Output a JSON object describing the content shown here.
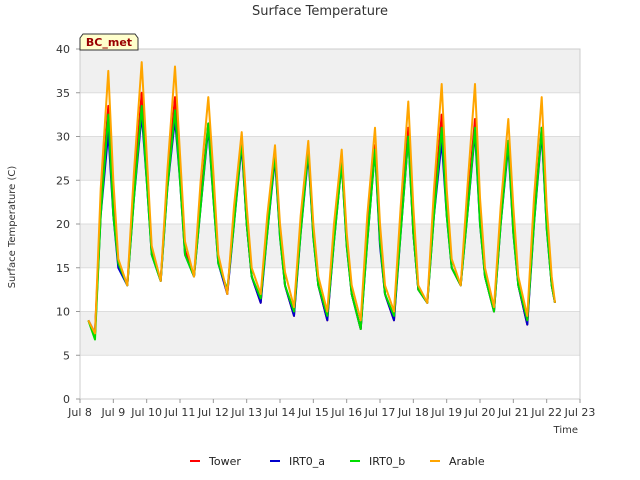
{
  "chart_data": {
    "type": "line",
    "title": "Surface Temperature",
    "xlabel": "Time",
    "ylabel": "Surface Temperature (C)",
    "badge": "BC_met",
    "xlim": [
      8.0,
      23.0
    ],
    "ylim": [
      0,
      40
    ],
    "x_tick_labels": [
      "Jul 8",
      "Jul 9",
      "Jul 10",
      "Jul 11",
      "Jul 12",
      "Jul 13",
      "Jul 14",
      "Jul 15",
      "Jul 16",
      "Jul 17",
      "Jul 18",
      "Jul 19",
      "Jul 20",
      "Jul 21",
      "Jul 22",
      "Jul 23"
    ],
    "y_tick_labels": [
      "0",
      "5",
      "10",
      "15",
      "20",
      "25",
      "30",
      "35",
      "40"
    ],
    "grid": true,
    "legend_position": "bottom",
    "series": [
      {
        "name": "Tower",
        "color": "#ff0000",
        "x": [
          8.25,
          8.45,
          8.62,
          8.85,
          9.0,
          9.15,
          9.42,
          9.62,
          9.85,
          10.0,
          10.15,
          10.42,
          10.62,
          10.85,
          11.0,
          11.15,
          11.42,
          11.62,
          11.85,
          12.0,
          12.15,
          12.42,
          12.62,
          12.85,
          13.0,
          13.15,
          13.42,
          13.62,
          13.85,
          14.0,
          14.15,
          14.42,
          14.62,
          14.85,
          15.0,
          15.15,
          15.42,
          15.62,
          15.85,
          16.0,
          16.15,
          16.42,
          16.62,
          16.85,
          17.0,
          17.15,
          17.42,
          17.62,
          17.85,
          18.0,
          18.15,
          18.42,
          18.62,
          18.85,
          19.0,
          19.15,
          19.42,
          19.62,
          19.85,
          20.0,
          20.15,
          20.42,
          20.62,
          20.85,
          21.0,
          21.15,
          21.42,
          21.62,
          21.85,
          22.0,
          22.15,
          22.25
        ],
        "y": [
          9.0,
          7.5,
          22.0,
          33.5,
          22.0,
          15.5,
          13.0,
          24.0,
          35.0,
          26.0,
          17.0,
          13.5,
          25.0,
          34.5,
          26.0,
          17.0,
          14.0,
          23.0,
          31.5,
          24.0,
          16.0,
          12.0,
          21.0,
          29.5,
          20.0,
          14.0,
          11.0,
          20.0,
          28.0,
          19.0,
          13.0,
          9.5,
          20.0,
          28.5,
          19.0,
          13.0,
          9.0,
          18.5,
          27.5,
          18.0,
          12.0,
          8.0,
          19.0,
          29.0,
          18.0,
          12.0,
          9.0,
          20.0,
          31.0,
          19.0,
          12.5,
          11.0,
          22.0,
          32.5,
          22.0,
          15.0,
          13.0,
          22.0,
          32.0,
          21.0,
          14.0,
          10.0,
          21.0,
          29.5,
          20.0,
          13.0,
          8.5,
          21.0,
          31.0,
          20.0,
          13.0,
          11.0
        ]
      },
      {
        "name": "IRT0_a",
        "color": "#0000cc",
        "x": [
          8.25,
          8.45,
          8.62,
          8.85,
          9.0,
          9.15,
          9.42,
          9.62,
          9.85,
          10.0,
          10.15,
          10.42,
          10.62,
          10.85,
          11.0,
          11.15,
          11.42,
          11.62,
          11.85,
          12.0,
          12.15,
          12.42,
          12.62,
          12.85,
          13.0,
          13.15,
          13.42,
          13.62,
          13.85,
          14.0,
          14.15,
          14.42,
          14.62,
          14.85,
          15.0,
          15.15,
          15.42,
          15.62,
          15.85,
          16.0,
          16.15,
          16.42,
          16.62,
          16.85,
          17.0,
          17.15,
          17.42,
          17.62,
          17.85,
          18.0,
          18.15,
          18.42,
          18.62,
          18.85,
          19.0,
          19.15,
          19.42,
          19.62,
          19.85,
          20.0,
          20.15,
          20.42,
          20.62,
          20.85,
          21.0,
          21.15,
          21.42,
          21.62,
          21.85,
          22.0,
          22.15,
          22.25
        ],
        "y": [
          9.0,
          7.5,
          21.0,
          30.5,
          21.0,
          15.0,
          13.0,
          23.0,
          32.5,
          25.0,
          16.5,
          13.5,
          24.0,
          32.0,
          25.0,
          16.5,
          14.0,
          22.0,
          31.0,
          23.0,
          15.5,
          12.0,
          20.0,
          29.0,
          20.0,
          14.0,
          11.0,
          19.0,
          27.5,
          18.5,
          13.0,
          9.5,
          19.0,
          28.0,
          18.5,
          13.0,
          9.0,
          18.0,
          27.0,
          17.5,
          12.0,
          8.0,
          18.0,
          28.5,
          17.5,
          12.0,
          9.0,
          19.0,
          30.0,
          19.0,
          12.5,
          11.0,
          21.0,
          29.5,
          21.0,
          15.0,
          13.0,
          21.0,
          30.5,
          20.0,
          14.0,
          10.0,
          20.0,
          29.0,
          19.0,
          13.0,
          8.5,
          20.0,
          30.5,
          19.5,
          13.0,
          11.0
        ]
      },
      {
        "name": "IRT0_b",
        "color": "#00dd00",
        "x": [
          8.25,
          8.45,
          8.62,
          8.85,
          9.0,
          9.15,
          9.42,
          9.62,
          9.85,
          10.0,
          10.15,
          10.42,
          10.62,
          10.85,
          11.0,
          11.15,
          11.42,
          11.62,
          11.85,
          12.0,
          12.15,
          12.42,
          12.62,
          12.85,
          13.0,
          13.15,
          13.42,
          13.62,
          13.85,
          14.0,
          14.15,
          14.42,
          14.62,
          14.85,
          15.0,
          15.15,
          15.42,
          15.62,
          15.85,
          16.0,
          16.15,
          16.42,
          16.62,
          16.85,
          17.0,
          17.15,
          17.42,
          17.62,
          17.85,
          18.0,
          18.15,
          18.42,
          18.62,
          18.85,
          19.0,
          19.15,
          19.42,
          19.62,
          19.85,
          20.0,
          20.15,
          20.42,
          20.62,
          20.85,
          21.0,
          21.15,
          21.42,
          21.62,
          21.85,
          22.0,
          22.15,
          22.25
        ],
        "y": [
          9.0,
          6.8,
          21.0,
          32.5,
          21.0,
          15.5,
          13.0,
          23.0,
          33.5,
          25.0,
          16.5,
          13.5,
          24.0,
          33.0,
          25.0,
          16.5,
          14.0,
          22.0,
          31.5,
          23.0,
          15.5,
          12.5,
          20.0,
          29.5,
          20.0,
          14.0,
          11.5,
          19.0,
          28.0,
          18.5,
          13.0,
          10.0,
          19.0,
          28.5,
          18.5,
          13.0,
          9.5,
          18.0,
          27.0,
          17.5,
          12.0,
          8.0,
          18.0,
          28.5,
          18.0,
          12.0,
          9.5,
          19.0,
          30.0,
          19.0,
          12.5,
          11.0,
          21.0,
          31.0,
          21.0,
          15.0,
          13.0,
          21.0,
          31.0,
          20.0,
          14.0,
          10.0,
          20.0,
          29.5,
          19.0,
          13.0,
          9.0,
          20.0,
          31.0,
          19.5,
          13.0,
          11.0
        ]
      },
      {
        "name": "Arable",
        "color": "#ffa500",
        "x": [
          8.25,
          8.45,
          8.62,
          8.85,
          9.0,
          9.15,
          9.42,
          9.62,
          9.85,
          10.0,
          10.15,
          10.42,
          10.62,
          10.85,
          11.0,
          11.15,
          11.42,
          11.62,
          11.85,
          12.0,
          12.15,
          12.42,
          12.62,
          12.85,
          13.0,
          13.15,
          13.42,
          13.62,
          13.85,
          14.0,
          14.15,
          14.42,
          14.62,
          14.85,
          15.0,
          15.15,
          15.42,
          15.62,
          15.85,
          16.0,
          16.15,
          16.42,
          16.62,
          16.85,
          17.0,
          17.15,
          17.42,
          17.62,
          17.85,
          18.0,
          18.15,
          18.42,
          18.62,
          18.85,
          19.0,
          19.15,
          19.42,
          19.62,
          19.85,
          20.0,
          20.15,
          20.42,
          20.62,
          20.85,
          21.0,
          21.15,
          21.42,
          21.62,
          21.85,
          22.0,
          22.15,
          22.25
        ],
        "y": [
          9.0,
          7.5,
          24.0,
          37.5,
          25.0,
          16.0,
          13.0,
          26.0,
          38.5,
          28.0,
          17.5,
          13.5,
          26.0,
          38.0,
          28.0,
          18.0,
          14.0,
          25.0,
          34.5,
          26.0,
          16.5,
          12.0,
          22.0,
          30.5,
          22.0,
          15.0,
          12.0,
          21.0,
          29.0,
          20.0,
          14.5,
          10.5,
          21.0,
          29.5,
          20.0,
          14.0,
          10.0,
          20.0,
          28.5,
          19.0,
          13.0,
          9.0,
          21.0,
          31.0,
          20.0,
          13.0,
          10.0,
          22.0,
          34.0,
          22.0,
          13.0,
          11.0,
          24.0,
          36.0,
          24.0,
          16.0,
          13.0,
          24.0,
          36.0,
          23.0,
          15.0,
          10.5,
          22.0,
          32.0,
          22.0,
          14.0,
          9.5,
          23.0,
          34.5,
          22.0,
          14.0,
          11.0
        ]
      }
    ]
  }
}
